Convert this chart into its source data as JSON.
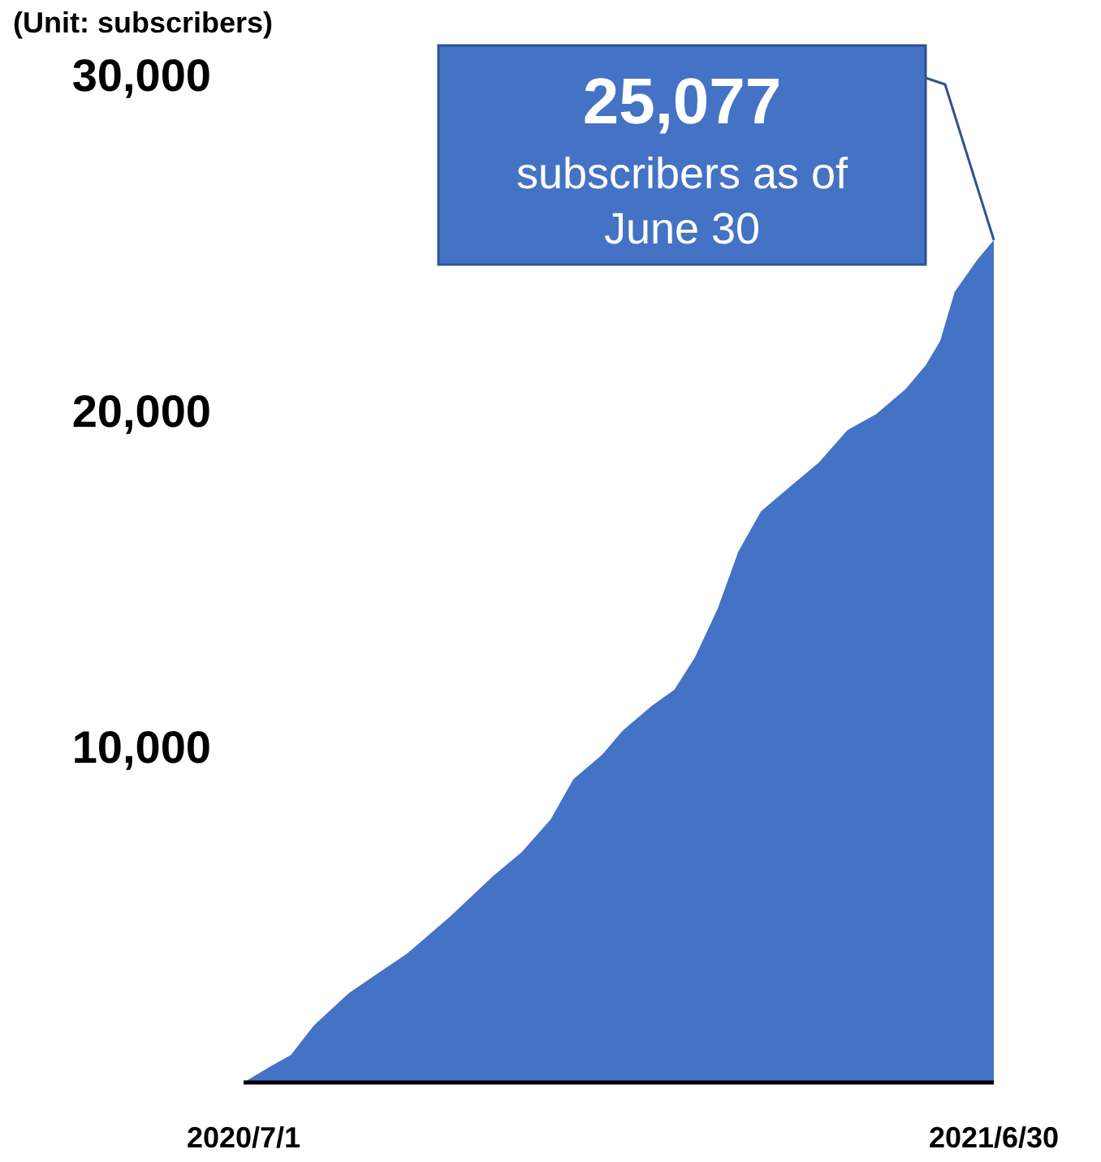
{
  "chart_data": {
    "type": "area",
    "ylabel": "(Unit: subscribers)",
    "x": [
      "2020-07-01",
      "2020-07-14",
      "2020-07-24",
      "2020-08-04",
      "2020-08-21",
      "2020-09-04",
      "2020-09-18",
      "2020-10-09",
      "2020-10-30",
      "2020-11-13",
      "2020-11-27",
      "2020-12-08",
      "2020-12-22",
      "2021-01-01",
      "2021-01-15",
      "2021-01-26",
      "2021-02-05",
      "2021-02-16",
      "2021-02-26",
      "2021-03-09",
      "2021-03-23",
      "2021-04-06",
      "2021-04-20",
      "2021-05-04",
      "2021-05-18",
      "2021-05-28",
      "2021-06-04",
      "2021-06-11",
      "2021-06-22",
      "2021-06-30"
    ],
    "series": [
      {
        "color": "#4472c4",
        "values": [
          0,
          480,
          820,
          1690,
          2660,
          3240,
          3820,
          4930,
          6140,
          6860,
          7830,
          9030,
          9760,
          10480,
          11210,
          11690,
          12660,
          14100,
          15800,
          17000,
          17730,
          18450,
          19420,
          19900,
          20630,
          21350,
          22080,
          23530,
          24490,
          25077
        ]
      }
    ],
    "xlim": [
      "2020-07-01",
      "2021-06-30"
    ],
    "xticks": [
      {
        "value": "2020-07-01",
        "label": "2020/7/1"
      },
      {
        "value": "2021-06-30",
        "label": "2021/6/30"
      }
    ],
    "ylim": [
      0,
      30000
    ],
    "yticks": [
      {
        "value": 10000,
        "label": "10,000"
      },
      {
        "value": 20000,
        "label": "20,000"
      },
      {
        "value": 30000,
        "label": "30,000"
      }
    ],
    "annotations": [
      {
        "text": "25,077 subscribers as of June 30",
        "x": "2021-06-30",
        "y": 25077
      }
    ],
    "grid": false
  }
}
